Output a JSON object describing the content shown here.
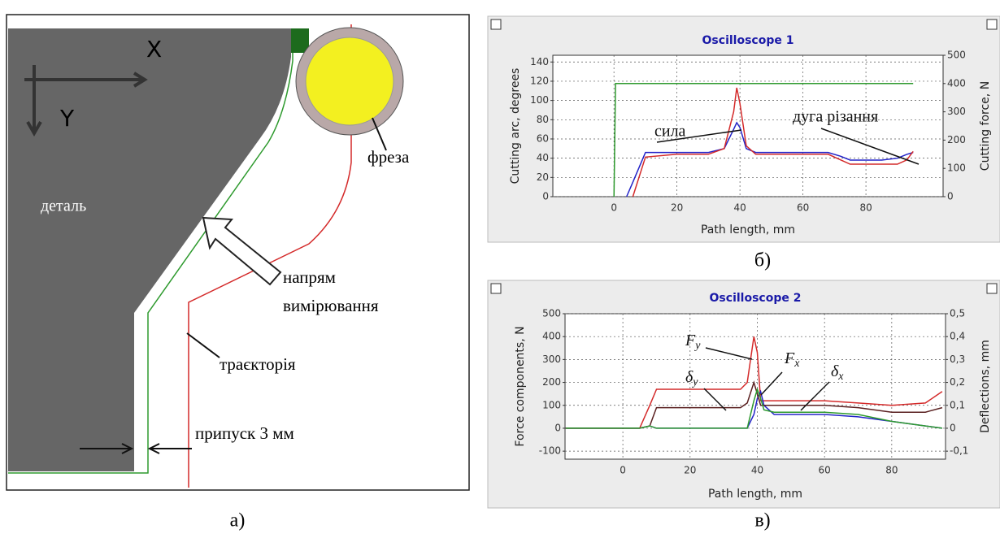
{
  "diagram": {
    "axis_x": "X",
    "axis_y": "Y",
    "part": "деталь",
    "cutter": "фреза",
    "direction": [
      "напрям",
      "вимірювання"
    ],
    "trajectory": "траєкторія",
    "allowance": "припуск 3 мм"
  },
  "captions": [
    "а)",
    "б)",
    "в)"
  ],
  "chart_data": [
    {
      "type": "line",
      "title": "Oscilloscope 1",
      "x_label": "Path length, mm",
      "y_label": "Cutting arc, degrees",
      "y2_label": "Cutting force, N",
      "x": [
        0,
        0.5,
        4,
        6,
        10,
        20,
        30,
        35,
        38,
        39,
        40,
        42,
        45,
        60,
        68,
        72,
        75,
        85,
        90,
        93,
        95
      ],
      "xlim": [
        -19.4,
        104.5
      ],
      "xticks": [
        0,
        20,
        40,
        60,
        80
      ],
      "ylim": [
        0,
        147
      ],
      "yticks": [
        0,
        20,
        40,
        60,
        80,
        100,
        120,
        140
      ],
      "y2lim": [
        0,
        500
      ],
      "y2ticks": [
        0,
        100,
        200,
        300,
        400,
        500
      ],
      "grid": true,
      "series": [
        {
          "color": "#2e9a2e",
          "axis": "y2",
          "values": [
            0,
            400,
            400,
            400,
            400,
            400,
            400,
            400,
            400,
            400,
            400,
            400,
            400,
            400,
            400,
            400,
            400,
            400,
            400,
            400,
            400
          ]
        },
        {
          "color": "#2323c8",
          "values": [
            null,
            null,
            0,
            15,
            46,
            46,
            46,
            50,
            70,
            77,
            72,
            50,
            46,
            46,
            46,
            42,
            38,
            38,
            40,
            44,
            46
          ]
        },
        {
          "color": "#d42a2a",
          "axis": "y2",
          "values": [
            null,
            null,
            null,
            0,
            140,
            150,
            150,
            170,
            300,
            385,
            330,
            180,
            150,
            150,
            150,
            130,
            115,
            115,
            115,
            130,
            160
          ]
        }
      ],
      "annotations": [
        {
          "text": "сила"
        },
        {
          "text": "дуга різання"
        }
      ]
    },
    {
      "type": "line",
      "title": "Oscilloscope 2",
      "x_label": "Path length, mm",
      "y_label": "Force components, N",
      "y2_label": "Deflections, mm",
      "x": [
        -17,
        5,
        8,
        10,
        20,
        35,
        37,
        39,
        40,
        41,
        42,
        45,
        60,
        70,
        80,
        90,
        95
      ],
      "xlim": [
        -17.2,
        96
      ],
      "xticks": [
        0,
        20,
        40,
        60,
        80
      ],
      "ylim": [
        -135,
        500
      ],
      "yticks": [
        -100,
        0,
        100,
        200,
        300,
        400,
        500
      ],
      "y2lim": [
        -0.135,
        0.5
      ],
      "y2ticks": [
        {
          "value": -0.1,
          "label": "-0,1"
        },
        0,
        {
          "value": 0.1,
          "label": "0,1"
        },
        {
          "value": 0.2,
          "label": "0,2"
        },
        {
          "value": 0.3,
          "label": "0,3"
        },
        {
          "value": 0.4,
          "label": "0,4"
        },
        {
          "value": 0.5,
          "label": "0,5"
        }
      ],
      "grid": true,
      "series": [
        {
          "color": "#d42a2a",
          "values": [
            0,
            0,
            100,
            170,
            170,
            170,
            200,
            400,
            330,
            120,
            120,
            120,
            120,
            110,
            100,
            110,
            160
          ]
        },
        {
          "color": "#2323c8",
          "values": [
            0,
            0,
            10,
            0,
            0,
            0,
            0,
            60,
            130,
            160,
            100,
            60,
            60,
            50,
            30,
            10,
            0
          ]
        },
        {
          "color": "#5a2020",
          "axis": "y2",
          "values": [
            0,
            0,
            0.01,
            0.09,
            0.09,
            0.09,
            0.11,
            0.2,
            0.15,
            0.1,
            0.1,
            0.1,
            0.1,
            0.09,
            0.07,
            0.07,
            0.09
          ]
        },
        {
          "color": "#2e9a2e",
          "axis": "y2",
          "values": [
            0,
            0,
            0.01,
            0,
            0,
            0,
            0,
            0.12,
            0.17,
            0.13,
            0.08,
            0.07,
            0.07,
            0.06,
            0.03,
            0.01,
            0
          ]
        }
      ],
      "annotations": [
        {
          "text": "F",
          "sub": "y"
        },
        {
          "text": "F",
          "sub": "x"
        },
        {
          "text": "δ",
          "sub": "y"
        },
        {
          "text": "δ",
          "sub": "x"
        }
      ]
    }
  ]
}
